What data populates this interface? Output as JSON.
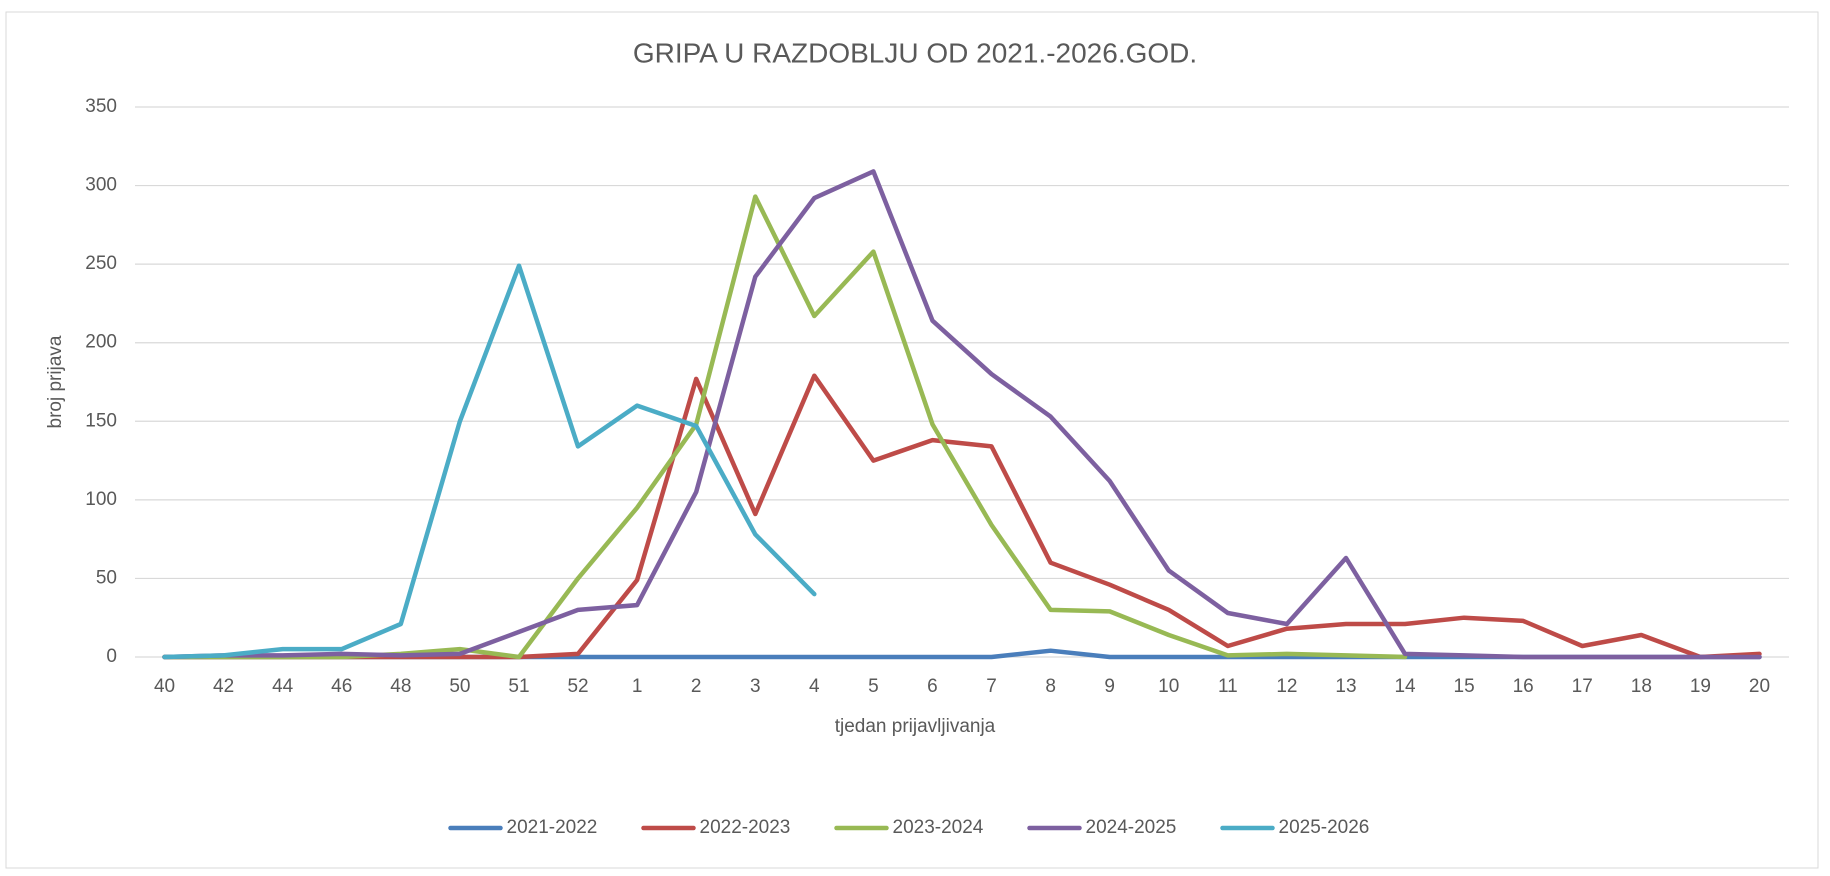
{
  "chart_data": {
    "type": "line",
    "title": "GRIPA U RAZDOBLJU OD 2021.-2026.GOD.",
    "x_label": "tjedan prijavljivanja",
    "y_label": "broj prijava",
    "categories": [
      "40",
      "42",
      "44",
      "46",
      "48",
      "50",
      "51",
      "52",
      "1",
      "2",
      "3",
      "4",
      "5",
      "6",
      "7",
      "8",
      "9",
      "10",
      "11",
      "12",
      "13",
      "14",
      "15",
      "16",
      "17",
      "18",
      "19",
      "20"
    ],
    "ylim": [
      0,
      350
    ],
    "yticks": [
      0,
      50,
      100,
      150,
      200,
      250,
      300,
      350
    ],
    "grid": true,
    "legend": "bottom",
    "series": [
      {
        "name": "2021-2022",
        "color": "#4a7ebb",
        "values": [
          0,
          0,
          0,
          0,
          0,
          0,
          0,
          0,
          0,
          0,
          0,
          0,
          0,
          0,
          0,
          4,
          0,
          0,
          0,
          0,
          0,
          0,
          0,
          0,
          0,
          0,
          0,
          0
        ]
      },
      {
        "name": "2022-2023",
        "color": "#be4b48",
        "values": [
          0,
          0,
          0,
          0,
          0,
          0,
          0,
          2,
          49,
          177,
          91,
          179,
          125,
          138,
          134,
          60,
          46,
          30,
          7,
          18,
          21,
          21,
          25,
          23,
          7,
          14,
          0,
          2
        ]
      },
      {
        "name": "2023-2024",
        "color": "#98b954",
        "values": [
          0,
          0,
          0,
          0,
          2,
          5,
          0,
          50,
          95,
          148,
          293,
          217,
          258,
          148,
          84,
          30,
          29,
          14,
          1,
          2,
          1,
          0,
          null,
          null,
          null,
          null,
          null,
          null
        ]
      },
      {
        "name": "2024-2025",
        "color": "#7d60a0",
        "values": [
          0,
          1,
          1,
          2,
          1,
          2,
          16,
          30,
          33,
          105,
          242,
          292,
          309,
          214,
          180,
          153,
          112,
          55,
          28,
          21,
          63,
          2,
          1,
          0,
          0,
          0,
          0,
          0
        ]
      },
      {
        "name": "2025-2026",
        "color": "#4bacc6",
        "values": [
          0,
          1,
          5,
          5,
          21,
          150,
          249,
          134,
          160,
          147,
          78,
          40,
          null,
          null,
          null,
          null,
          null,
          null,
          null,
          null,
          null,
          null,
          null,
          null,
          null,
          null,
          null,
          null
        ]
      }
    ]
  }
}
